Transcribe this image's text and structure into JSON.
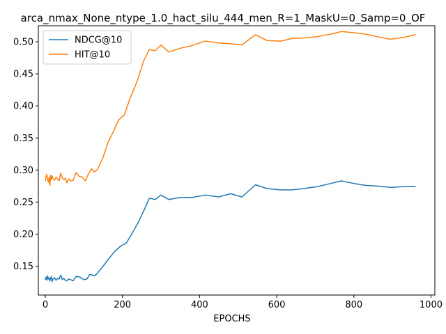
{
  "chart_data": {
    "type": "line",
    "title": "arca_nmax_None_ntype_1.0_hact_silu_444_men_R=1_MaskU=0_Samp=0_OF",
    "xlabel": "EPOCHS",
    "ylabel": "",
    "xlim": [
      -18,
      1010
    ],
    "ylim": [
      0.105,
      0.525
    ],
    "xticks": [
      0,
      200,
      400,
      600,
      800,
      1000
    ],
    "yticks": [
      0.15,
      0.2,
      0.25,
      0.3,
      0.35,
      0.4,
      0.45,
      0.5
    ],
    "ytick_labels": [
      "0.15",
      "0.20",
      "0.25",
      "0.30",
      "0.35",
      "0.40",
      "0.45",
      "0.50"
    ],
    "grid": false,
    "legend_position": "upper-left",
    "series": [
      {
        "name": "NDCG@10",
        "color": "#1f77b4",
        "points": [
          [
            0,
            0.129
          ],
          [
            2,
            0.133
          ],
          [
            4,
            0.128
          ],
          [
            6,
            0.135
          ],
          [
            8,
            0.13
          ],
          [
            10,
            0.132
          ],
          [
            12,
            0.127
          ],
          [
            14,
            0.131
          ],
          [
            16,
            0.134
          ],
          [
            18,
            0.126
          ],
          [
            20,
            0.13
          ],
          [
            24,
            0.132
          ],
          [
            28,
            0.128
          ],
          [
            32,
            0.131
          ],
          [
            36,
            0.13
          ],
          [
            40,
            0.136
          ],
          [
            44,
            0.129
          ],
          [
            48,
            0.131
          ],
          [
            52,
            0.128
          ],
          [
            56,
            0.127
          ],
          [
            60,
            0.13
          ],
          [
            66,
            0.129
          ],
          [
            72,
            0.127
          ],
          [
            80,
            0.134
          ],
          [
            90,
            0.133
          ],
          [
            100,
            0.129
          ],
          [
            108,
            0.13
          ],
          [
            115,
            0.137
          ],
          [
            122,
            0.136
          ],
          [
            128,
            0.135
          ],
          [
            135,
            0.139
          ],
          [
            150,
            0.15
          ],
          [
            165,
            0.162
          ],
          [
            180,
            0.173
          ],
          [
            195,
            0.181
          ],
          [
            210,
            0.186
          ],
          [
            225,
            0.201
          ],
          [
            240,
            0.217
          ],
          [
            255,
            0.236
          ],
          [
            270,
            0.256
          ],
          [
            285,
            0.254
          ],
          [
            300,
            0.261
          ],
          [
            320,
            0.254
          ],
          [
            350,
            0.257
          ],
          [
            380,
            0.257
          ],
          [
            415,
            0.261
          ],
          [
            450,
            0.258
          ],
          [
            480,
            0.263
          ],
          [
            510,
            0.258
          ],
          [
            545,
            0.277
          ],
          [
            575,
            0.271
          ],
          [
            610,
            0.269
          ],
          [
            640,
            0.269
          ],
          [
            670,
            0.271
          ],
          [
            705,
            0.274
          ],
          [
            740,
            0.279
          ],
          [
            768,
            0.283
          ],
          [
            800,
            0.279
          ],
          [
            830,
            0.276
          ],
          [
            860,
            0.275
          ],
          [
            895,
            0.273
          ],
          [
            930,
            0.274
          ],
          [
            960,
            0.274
          ]
        ]
      },
      {
        "name": "HIT@10",
        "color": "#ff7f0e",
        "points": [
          [
            0,
            0.283
          ],
          [
            2,
            0.29
          ],
          [
            4,
            0.293
          ],
          [
            6,
            0.285
          ],
          [
            8,
            0.281
          ],
          [
            10,
            0.289
          ],
          [
            12,
            0.276
          ],
          [
            14,
            0.292
          ],
          [
            16,
            0.285
          ],
          [
            18,
            0.291
          ],
          [
            20,
            0.287
          ],
          [
            24,
            0.284
          ],
          [
            28,
            0.289
          ],
          [
            32,
            0.286
          ],
          [
            36,
            0.283
          ],
          [
            40,
            0.295
          ],
          [
            44,
            0.288
          ],
          [
            48,
            0.285
          ],
          [
            52,
            0.287
          ],
          [
            56,
            0.28
          ],
          [
            60,
            0.286
          ],
          [
            66,
            0.283
          ],
          [
            72,
            0.284
          ],
          [
            80,
            0.296
          ],
          [
            88,
            0.29
          ],
          [
            96,
            0.289
          ],
          [
            104,
            0.283
          ],
          [
            112,
            0.294
          ],
          [
            120,
            0.302
          ],
          [
            127,
            0.297
          ],
          [
            135,
            0.301
          ],
          [
            150,
            0.32
          ],
          [
            162,
            0.342
          ],
          [
            175,
            0.358
          ],
          [
            190,
            0.378
          ],
          [
            205,
            0.386
          ],
          [
            220,
            0.412
          ],
          [
            238,
            0.438
          ],
          [
            255,
            0.47
          ],
          [
            270,
            0.488
          ],
          [
            285,
            0.486
          ],
          [
            300,
            0.495
          ],
          [
            320,
            0.484
          ],
          [
            350,
            0.49
          ],
          [
            380,
            0.494
          ],
          [
            415,
            0.501
          ],
          [
            450,
            0.498
          ],
          [
            480,
            0.497
          ],
          [
            510,
            0.495
          ],
          [
            545,
            0.511
          ],
          [
            575,
            0.502
          ],
          [
            610,
            0.501
          ],
          [
            640,
            0.505
          ],
          [
            670,
            0.506
          ],
          [
            705,
            0.508
          ],
          [
            740,
            0.512
          ],
          [
            768,
            0.516
          ],
          [
            800,
            0.514
          ],
          [
            830,
            0.512
          ],
          [
            860,
            0.508
          ],
          [
            895,
            0.504
          ],
          [
            930,
            0.507
          ],
          [
            960,
            0.511
          ]
        ]
      }
    ]
  }
}
